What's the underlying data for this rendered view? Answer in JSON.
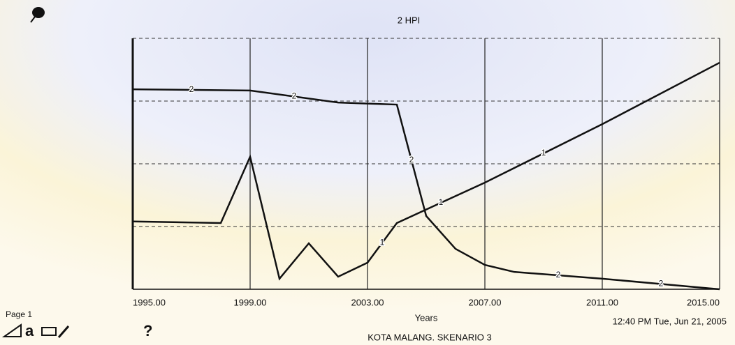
{
  "chart_data": {
    "type": "line",
    "title": "2  HPI",
    "x_label": "Years",
    "xlim": [
      1995,
      2015
    ],
    "xticks": [
      {
        "value": 1995,
        "label": "1995.00"
      },
      {
        "value": 1999,
        "label": "1999.00"
      },
      {
        "value": 2003,
        "label": "2003.00"
      },
      {
        "value": 2007,
        "label": "2007.00"
      },
      {
        "value": 2011,
        "label": "2011.00"
      },
      {
        "value": 2015,
        "label": "2015.00"
      }
    ],
    "ylim": [
      0,
      100
    ],
    "yticks": [
      0,
      25,
      50,
      75,
      100
    ],
    "grid": true,
    "series": [
      {
        "name": "1",
        "color": "#111111",
        "x": [
          1995,
          1998,
          1999,
          2000,
          2001,
          2002,
          2003,
          2004,
          2007,
          2011,
          2015
        ],
        "values": [
          27,
          26.4,
          52.8,
          4.2,
          18.3,
          5,
          10.6,
          26.4,
          42.5,
          65.8,
          90.3
        ]
      },
      {
        "name": "2",
        "color": "#111111",
        "x": [
          1995,
          1999,
          2002,
          2004,
          2005,
          2006,
          2007,
          2008,
          2011,
          2015
        ],
        "values": [
          79.7,
          79.2,
          74.4,
          73.6,
          29.2,
          16.1,
          9.7,
          6.9,
          4.2,
          0
        ]
      }
    ]
  },
  "footer": {
    "page": "Page 1",
    "help": "?",
    "timestamp": "12:40 PM   Tue, Jun 21, 2005",
    "caption": "KOTA MALANG. SKENARIO 3"
  }
}
